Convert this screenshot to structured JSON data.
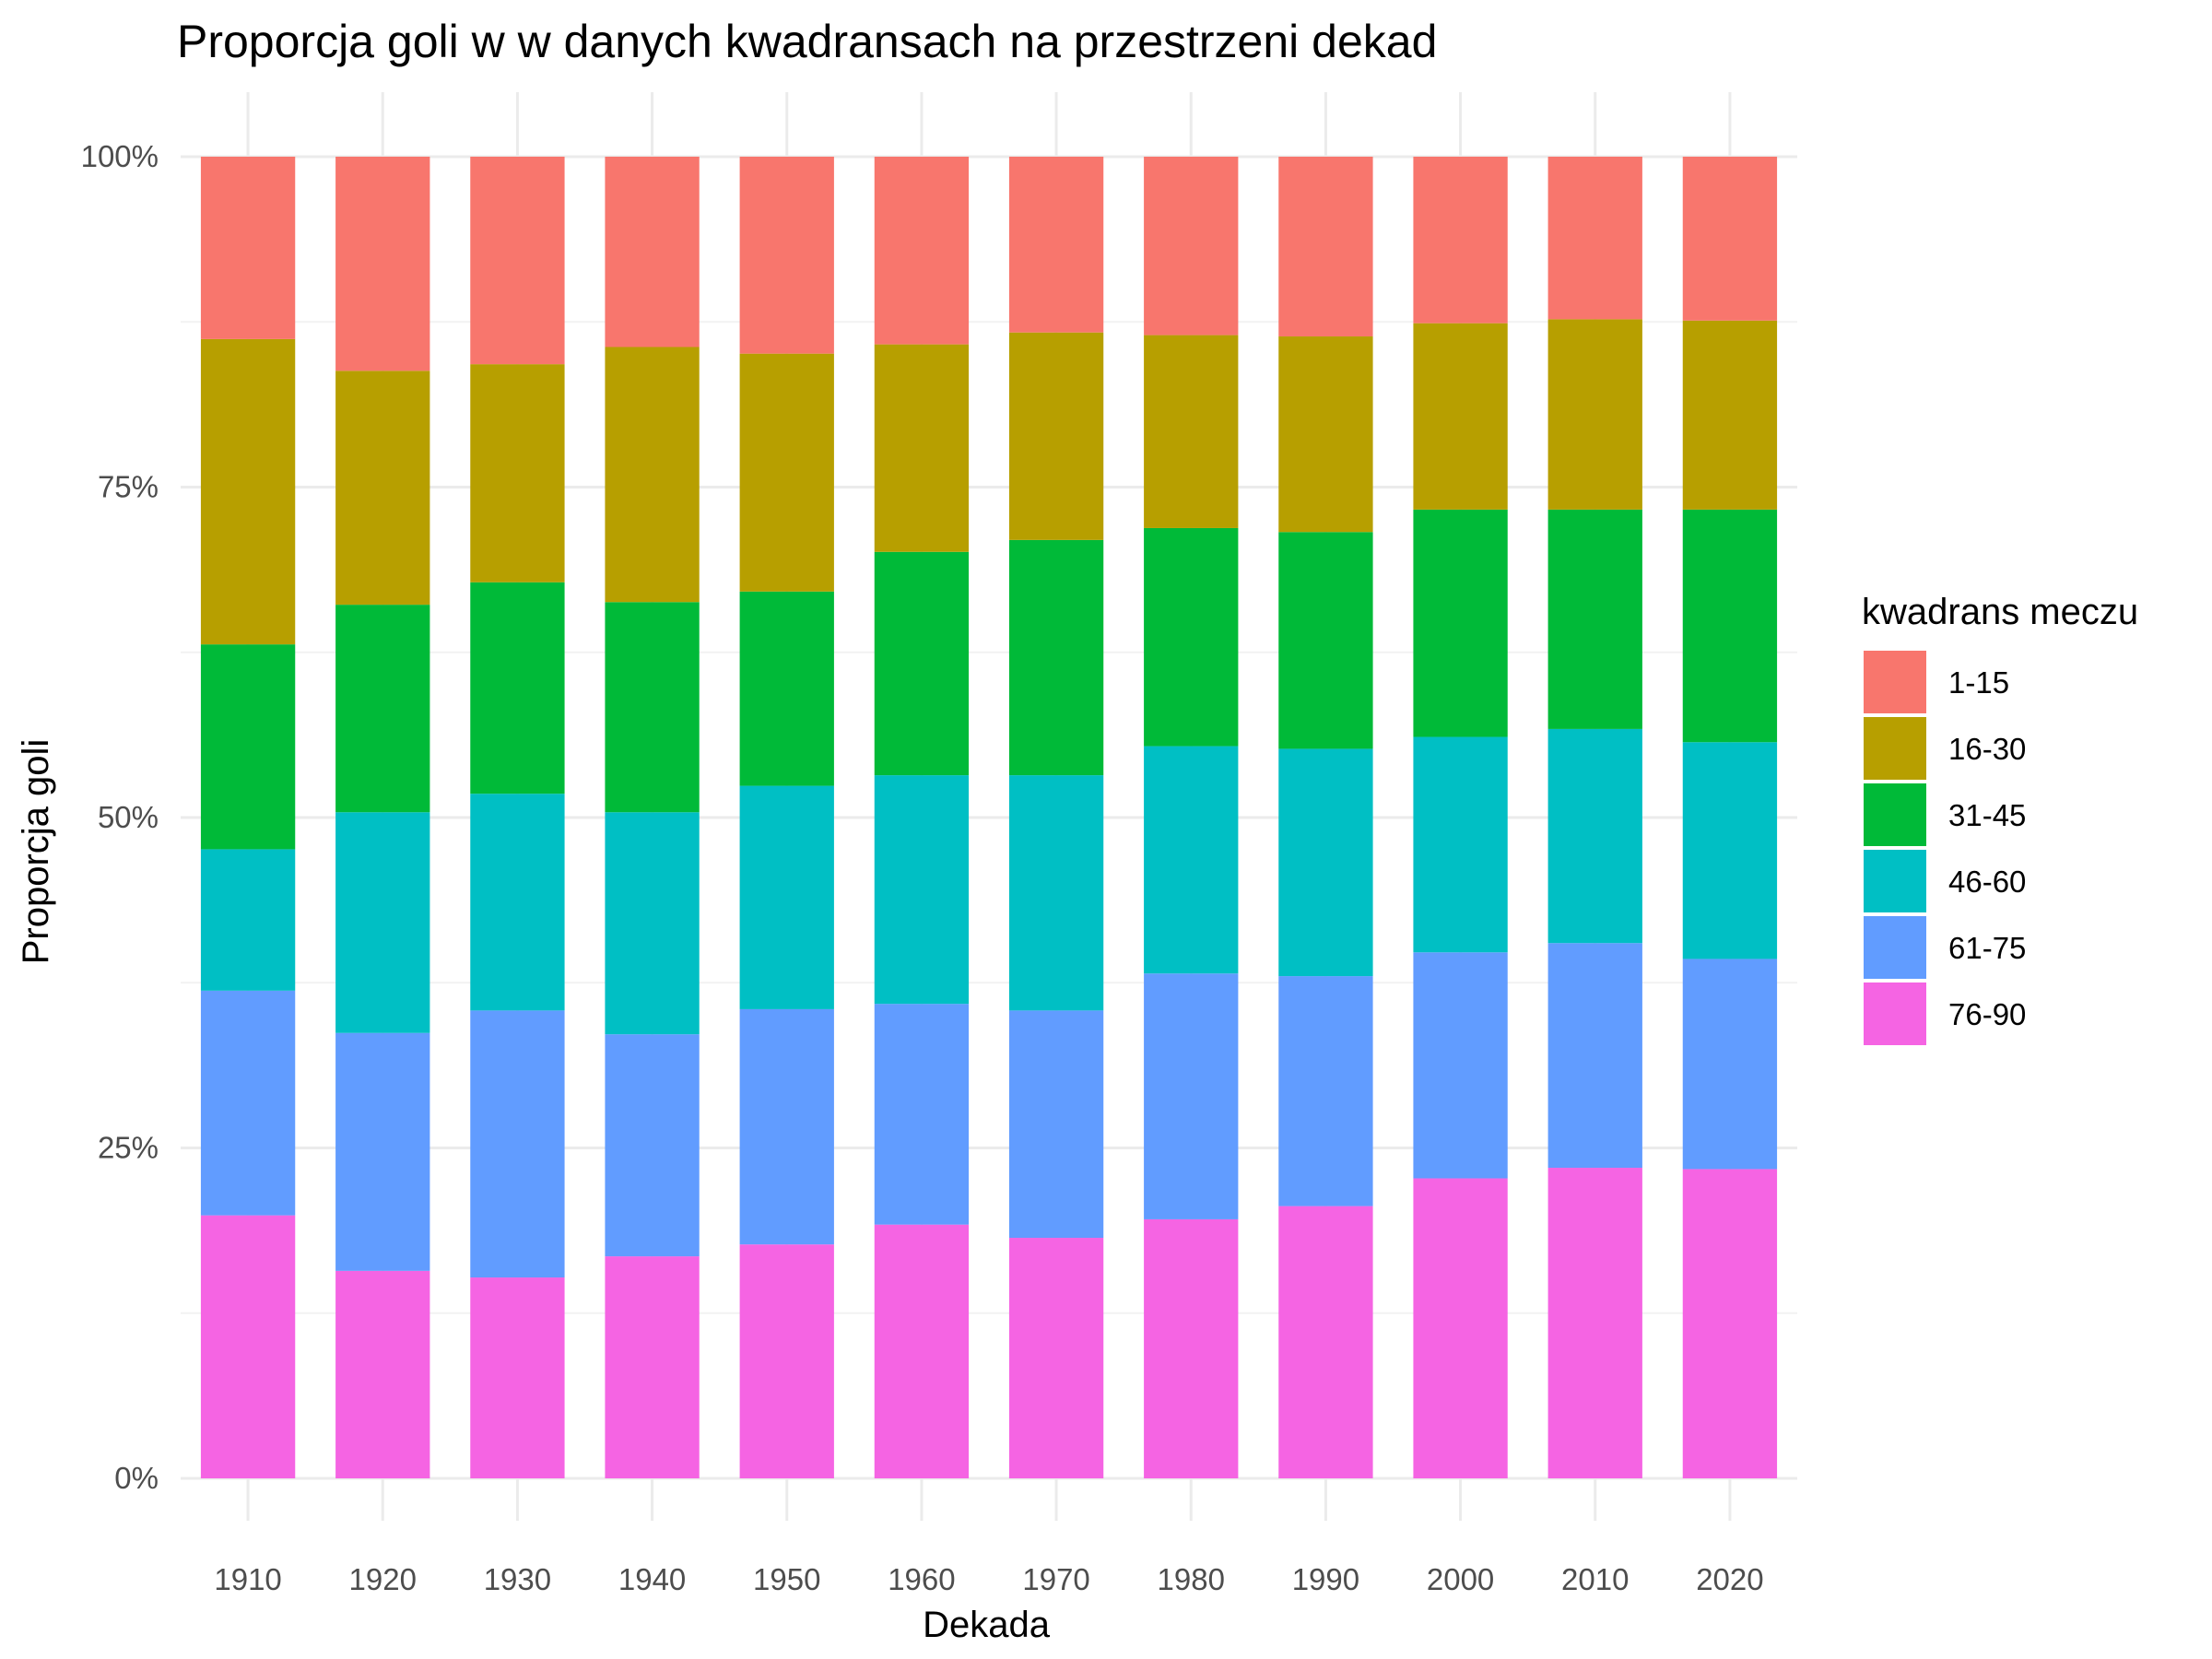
{
  "chart_data": {
    "type": "bar",
    "stacked": "percent",
    "title": "Proporcja goli w w danych kwadransach na przestrzeni dekad",
    "xlabel": "Dekada",
    "ylabel": "Proporcja goli",
    "ylim": [
      0,
      1
    ],
    "y_ticks": [
      "0%",
      "25%",
      "50%",
      "75%",
      "100%"
    ],
    "grid": true,
    "legend_position": "right",
    "legend_title": "kwadrans meczu",
    "categories": [
      "1910",
      "1920",
      "1930",
      "1940",
      "1950",
      "1960",
      "1970",
      "1980",
      "1990",
      "2000",
      "2010",
      "2020"
    ],
    "series": [
      {
        "name": "1-15",
        "color": "#F8766D",
        "values": [
          0.138,
          0.162,
          0.157,
          0.144,
          0.149,
          0.142,
          0.133,
          0.135,
          0.136,
          0.126,
          0.123,
          0.124
        ]
      },
      {
        "name": "16-30",
        "color": "#B79F00",
        "values": [
          0.231,
          0.177,
          0.165,
          0.193,
          0.18,
          0.157,
          0.157,
          0.146,
          0.148,
          0.141,
          0.144,
          0.143
        ]
      },
      {
        "name": "31-45",
        "color": "#00BA38",
        "values": [
          0.155,
          0.157,
          0.16,
          0.159,
          0.147,
          0.169,
          0.178,
          0.165,
          0.164,
          0.172,
          0.166,
          0.176
        ]
      },
      {
        "name": "46-60",
        "color": "#00BFC4",
        "values": [
          0.107,
          0.167,
          0.164,
          0.168,
          0.169,
          0.173,
          0.178,
          0.172,
          0.172,
          0.163,
          0.162,
          0.164
        ]
      },
      {
        "name": "61-75",
        "color": "#619CFF",
        "values": [
          0.17,
          0.18,
          0.202,
          0.168,
          0.178,
          0.167,
          0.172,
          0.186,
          0.174,
          0.171,
          0.17,
          0.159
        ]
      },
      {
        "name": "76-90",
        "color": "#F564E3",
        "values": [
          0.199,
          0.157,
          0.152,
          0.168,
          0.177,
          0.192,
          0.182,
          0.196,
          0.206,
          0.227,
          0.235,
          0.234
        ]
      }
    ]
  }
}
